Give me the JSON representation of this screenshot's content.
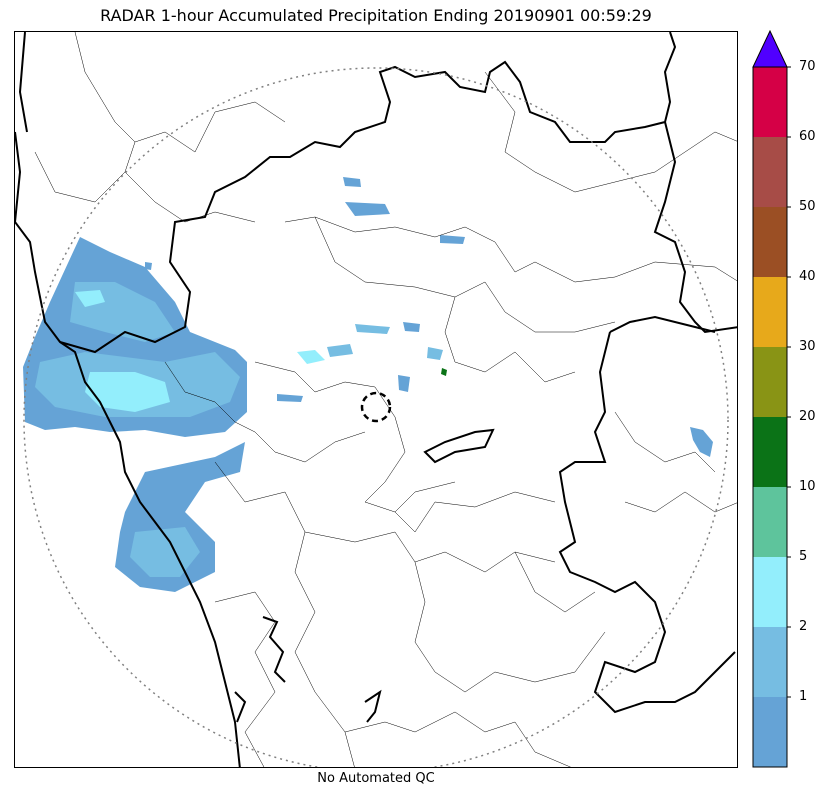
{
  "title": "RADAR 1-hour Accumulated Precipitation Ending 20190901 00:59:29",
  "footer": "No Automated QC",
  "colorbar": {
    "ticks": [
      "1",
      "2",
      "5",
      "10",
      "20",
      "30",
      "40",
      "50",
      "60",
      "70"
    ],
    "colors": [
      "#65a3d6",
      "#76bde2",
      "#93eefc",
      "#5ec49c",
      "#0b7317",
      "#899415",
      "#e7a91b",
      "#9b4f24",
      "#a74c47",
      "#d50046"
    ],
    "extend_color": "#5000ff"
  },
  "map": {
    "range_ring_color": "#808080",
    "border_color": "#000000",
    "district_color": "#000000"
  }
}
